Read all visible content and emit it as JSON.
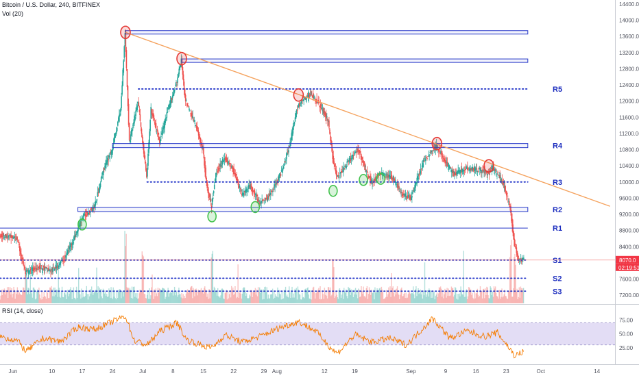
{
  "header": {
    "symbol_line": "Bitcoin / U.S. Dollar, 240, BITFINEX",
    "volume_label": "Vol (20)",
    "rsi_label": "RSI (14, close)"
  },
  "price_axis": {
    "ticks": [
      "14400.00",
      "14000.00",
      "13600.00",
      "13200.00",
      "12800.00",
      "12400.00",
      "12000.00",
      "11600.00",
      "11200.00",
      "10800.00",
      "10400.00",
      "10000.00",
      "9600.00",
      "9200.00",
      "8800.00",
      "8400.00",
      "8000.00",
      "7600.00",
      "7200.00"
    ],
    "current_price_label": "8070.0",
    "countdown_label": "02:19:51",
    "current_price_color": "#f23645"
  },
  "rsi_axis": {
    "ticks": [
      "75.00",
      "50.00",
      "25.00"
    ]
  },
  "time_axis": {
    "labels": [
      "Jun",
      "10",
      "17",
      "24",
      "Jul",
      "8",
      "15",
      "22",
      "29",
      "Aug",
      "12",
      "19",
      "Sep",
      "9",
      "16",
      "23",
      "Oct",
      "14"
    ]
  },
  "levels": [
    {
      "label": "R5",
      "price": 12300,
      "style": "dotted"
    },
    {
      "label": "R4",
      "price": 10900,
      "style": "zone"
    },
    {
      "label": "R3",
      "price": 10000,
      "style": "dotted"
    },
    {
      "label": "R2",
      "price": 9320,
      "style": "zone"
    },
    {
      "label": "R1",
      "price": 8860,
      "style": "solid"
    },
    {
      "label": "S1",
      "price": 8070,
      "style": "dotted"
    },
    {
      "label": "S2",
      "price": 7620,
      "style": "dotted"
    },
    {
      "label": "S3",
      "price": 7300,
      "style": "dotted"
    }
  ],
  "colors": {
    "up": "#26a69a",
    "down": "#ef5350",
    "level": "#2436c8",
    "label": "#1e2fbf",
    "trendline": "#f5a25d",
    "rsi_line": "#f57c00",
    "rsi_band": "#d9d2f2",
    "peak_marker": "#e53935",
    "trough_marker": "#43c24d"
  },
  "chart_data": {
    "type": "candlestick",
    "symbol": "Bitcoin / U.S. Dollar",
    "timeframe": "240",
    "exchange": "BITFINEX",
    "x_range": [
      "2019-05-29",
      "2019-10-18"
    ],
    "y_range": [
      7000,
      14500
    ],
    "price_path": [
      [
        "2019-05-29",
        8700
      ],
      [
        "2019-06-02",
        8600
      ],
      [
        "2019-06-04",
        7750
      ],
      [
        "2019-06-07",
        7900
      ],
      [
        "2019-06-10",
        7800
      ],
      [
        "2019-06-13",
        8100
      ],
      [
        "2019-06-16",
        8800
      ],
      [
        "2019-06-17",
        9100
      ],
      [
        "2019-06-18",
        9200
      ],
      [
        "2019-06-20",
        9400
      ],
      [
        "2019-06-22",
        10300
      ],
      [
        "2019-06-24",
        10800
      ],
      [
        "2019-06-26",
        11800
      ],
      [
        "2019-06-27",
        13700
      ],
      [
        "2019-06-28",
        11000
      ],
      [
        "2019-06-30",
        12000
      ],
      [
        "2019-07-02",
        10100
      ],
      [
        "2019-07-03",
        11800
      ],
      [
        "2019-07-05",
        11000
      ],
      [
        "2019-07-07",
        11800
      ],
      [
        "2019-07-09",
        12500
      ],
      [
        "2019-07-10",
        13000
      ],
      [
        "2019-07-11",
        12000
      ],
      [
        "2019-07-13",
        11500
      ],
      [
        "2019-07-15",
        10800
      ],
      [
        "2019-07-16",
        9800
      ],
      [
        "2019-07-17",
        9400
      ],
      [
        "2019-07-18",
        10200
      ],
      [
        "2019-07-20",
        10600
      ],
      [
        "2019-07-22",
        10300
      ],
      [
        "2019-07-24",
        9700
      ],
      [
        "2019-07-26",
        9900
      ],
      [
        "2019-07-28",
        9500
      ],
      [
        "2019-07-30",
        9600
      ],
      [
        "2019-08-02",
        10200
      ],
      [
        "2019-08-04",
        10900
      ],
      [
        "2019-08-06",
        11900
      ],
      [
        "2019-08-07",
        12000
      ],
      [
        "2019-08-09",
        12200
      ],
      [
        "2019-08-11",
        11900
      ],
      [
        "2019-08-13",
        11500
      ],
      [
        "2019-08-14",
        10600
      ],
      [
        "2019-08-15",
        10100
      ],
      [
        "2019-08-17",
        10400
      ],
      [
        "2019-08-19",
        10700
      ],
      [
        "2019-08-20",
        10800
      ],
      [
        "2019-08-22",
        10200
      ],
      [
        "2019-08-23",
        10000
      ],
      [
        "2019-08-25",
        10200
      ],
      [
        "2019-08-28",
        10100
      ],
      [
        "2019-08-30",
        9700
      ],
      [
        "2019-09-01",
        9600
      ],
      [
        "2019-09-04",
        10500
      ],
      [
        "2019-09-06",
        10800
      ],
      [
        "2019-09-07",
        10900
      ],
      [
        "2019-09-09",
        10500
      ],
      [
        "2019-09-11",
        10200
      ],
      [
        "2019-09-14",
        10350
      ],
      [
        "2019-09-17",
        10300
      ],
      [
        "2019-09-19",
        10200
      ],
      [
        "2019-09-20",
        10350
      ],
      [
        "2019-09-22",
        10050
      ],
      [
        "2019-09-23",
        9750
      ],
      [
        "2019-09-24",
        9400
      ],
      [
        "2019-09-25",
        8450
      ],
      [
        "2019-09-26",
        8100
      ],
      [
        "2019-09-27",
        8070
      ]
    ],
    "price_peaks": [
      {
        "date": "2019-06-27",
        "price": 13700
      },
      {
        "date": "2019-07-10",
        "price": 13050
      },
      {
        "date": "2019-08-06",
        "price": 12150
      },
      {
        "date": "2019-09-07",
        "price": 10950
      },
      {
        "date": "2019-09-19",
        "price": 10400
      }
    ],
    "price_troughs": [
      {
        "date": "2019-06-17",
        "price": 8950
      },
      {
        "date": "2019-07-17",
        "price": 9150
      },
      {
        "date": "2019-07-27",
        "price": 9380
      },
      {
        "date": "2019-08-14",
        "price": 9780
      },
      {
        "date": "2019-08-21",
        "price": 10050
      },
      {
        "date": "2019-08-25",
        "price": 10080
      }
    ],
    "trendline": [
      {
        "date": "2019-06-27",
        "price": 13700
      },
      {
        "date": "2019-10-17",
        "price": 9400
      }
    ],
    "current_price": 8070.0,
    "rsi": {
      "period": 14,
      "y_range": [
        0,
        100
      ],
      "band": [
        30,
        70
      ],
      "path": [
        [
          "2019-05-29",
          45
        ],
        [
          "2019-06-02",
          38
        ],
        [
          "2019-06-04",
          18
        ],
        [
          "2019-06-08",
          42
        ],
        [
          "2019-06-12",
          36
        ],
        [
          "2019-06-16",
          62
        ],
        [
          "2019-06-20",
          58
        ],
        [
          "2019-06-24",
          72
        ],
        [
          "2019-06-27",
          82
        ],
        [
          "2019-06-29",
          38
        ],
        [
          "2019-07-02",
          30
        ],
        [
          "2019-07-05",
          55
        ],
        [
          "2019-07-09",
          70
        ],
        [
          "2019-07-11",
          40
        ],
        [
          "2019-07-15",
          28
        ],
        [
          "2019-07-17",
          25
        ],
        [
          "2019-07-20",
          48
        ],
        [
          "2019-07-24",
          35
        ],
        [
          "2019-07-28",
          45
        ],
        [
          "2019-08-02",
          62
        ],
        [
          "2019-08-06",
          72
        ],
        [
          "2019-08-10",
          55
        ],
        [
          "2019-08-14",
          20
        ],
        [
          "2019-08-15",
          15
        ],
        [
          "2019-08-19",
          48
        ],
        [
          "2019-08-23",
          35
        ],
        [
          "2019-08-27",
          42
        ],
        [
          "2019-08-31",
          30
        ],
        [
          "2019-09-04",
          62
        ],
        [
          "2019-09-06",
          78
        ],
        [
          "2019-09-10",
          42
        ],
        [
          "2019-09-14",
          55
        ],
        [
          "2019-09-18",
          45
        ],
        [
          "2019-09-21",
          52
        ],
        [
          "2019-09-23",
          32
        ],
        [
          "2019-09-25",
          10
        ],
        [
          "2019-09-27",
          18
        ]
      ]
    },
    "volume_spikes": [
      {
        "date": "2019-06-04",
        "value": 0.55
      },
      {
        "date": "2019-06-27",
        "value": 1.0
      },
      {
        "date": "2019-07-01",
        "value": 0.7
      },
      {
        "date": "2019-07-17",
        "value": 0.85
      },
      {
        "date": "2019-08-14",
        "value": 0.6
      },
      {
        "date": "2019-09-24",
        "value": 0.95
      },
      {
        "date": "2019-09-25",
        "value": 0.7
      }
    ]
  }
}
